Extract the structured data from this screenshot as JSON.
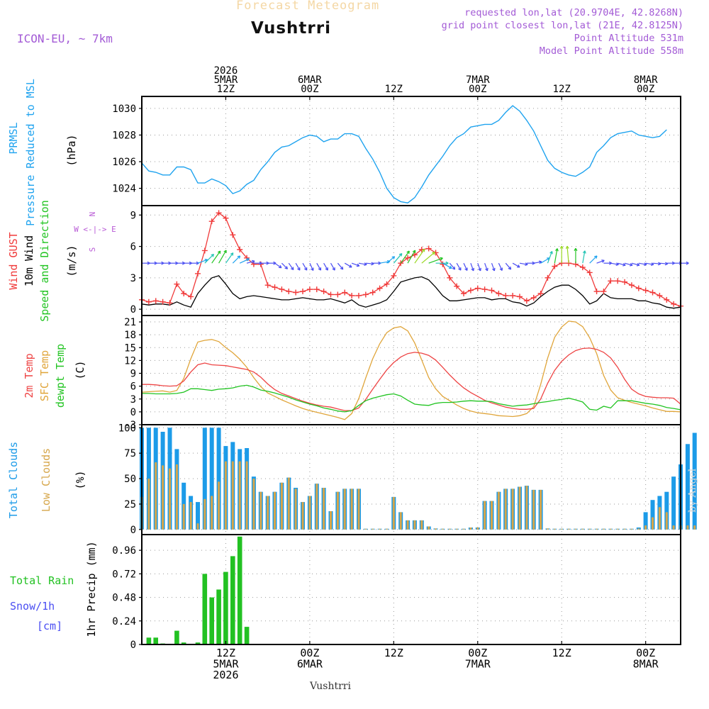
{
  "header": {
    "product_watermark": "Forecast Meteogram",
    "location": "Vushtrri",
    "model": "ICON-EU, ~ 7km",
    "requested": "requested lon,lat (20.9704E, 42.8268N)",
    "grid_point": "grid point closest lon,lat (21E, 42.8125N)",
    "point_altitude": "Point Altitude 531m",
    "model_altitude": "Model Point Altitude 558m",
    "credit": "by Angel",
    "footer_location": "Vushtrri"
  },
  "colors": {
    "pressure": "#1fa3ef",
    "gust": "#f03a3a",
    "wind": "#000000",
    "arrows": "#22c422",
    "temp2m": "#ee4444",
    "sfc": "#e0a53a",
    "dewpt": "#22c422",
    "total_clouds": "#1c9be8",
    "low_clouds": "#d6a64a",
    "rain": "#22c122",
    "snow": "#4a4ef2",
    "compass": "#b85ad6",
    "grid": "#9a9a9a"
  },
  "time_axis": {
    "top_labels": [
      {
        "hour": 12,
        "lines": [
          "2026",
          "5MAR",
          "12Z"
        ]
      },
      {
        "hour": 24,
        "lines": [
          "6MAR",
          "00Z"
        ]
      },
      {
        "hour": 36,
        "lines": [
          "12Z"
        ]
      },
      {
        "hour": 48,
        "lines": [
          "7MAR",
          "00Z"
        ]
      },
      {
        "hour": 60,
        "lines": [
          "12Z"
        ]
      },
      {
        "hour": 72,
        "lines": [
          "8MAR",
          "00Z"
        ]
      }
    ],
    "bottom_labels": [
      {
        "hour": 12,
        "lines": [
          "12Z",
          "5MAR",
          "2026"
        ]
      },
      {
        "hour": 24,
        "lines": [
          "00Z",
          "6MAR"
        ]
      },
      {
        "hour": 36,
        "lines": [
          "12Z"
        ]
      },
      {
        "hour": 48,
        "lines": [
          "00Z",
          "7MAR"
        ]
      },
      {
        "hour": 60,
        "lines": [
          "12Z"
        ]
      },
      {
        "hour": 72,
        "lines": [
          "00Z",
          "8MAR"
        ]
      }
    ]
  },
  "chart_data": [
    {
      "type": "line",
      "id": "pressure",
      "panel_title": [
        "PRMSL",
        "Pressure Reduced to MSL"
      ],
      "ylabel": "(hPa)",
      "x_range_hours": [
        0,
        77
      ],
      "ylim": [
        1022.7,
        1030.9
      ],
      "yticks": [
        1024,
        1026,
        1028,
        1030
      ],
      "series": [
        {
          "name": "PRMSL",
          "hour_start": 0,
          "values": [
            1025.9,
            1025.3,
            1025.2,
            1025.0,
            1025.0,
            1025.6,
            1025.6,
            1025.4,
            1024.4,
            1024.4,
            1024.7,
            1024.5,
            1024.2,
            1023.6,
            1023.8,
            1024.3,
            1024.6,
            1025.4,
            1026.0,
            1026.7,
            1027.1,
            1027.2,
            1027.5,
            1027.8,
            1028.0,
            1027.9,
            1027.5,
            1027.7,
            1027.7,
            1028.1,
            1028.1,
            1027.9,
            1027.0,
            1026.2,
            1025.2,
            1024.0,
            1023.3,
            1023.0,
            1022.9,
            1023.3,
            1024.1,
            1025.0,
            1025.7,
            1026.4,
            1027.2,
            1027.8,
            1028.1,
            1028.6,
            1028.7,
            1028.8,
            1028.8,
            1029.1,
            1029.7,
            1030.2,
            1029.8,
            1029.1,
            1028.3,
            1027.2,
            1026.1,
            1025.5,
            1025.2,
            1025.0,
            1024.9,
            1025.2,
            1025.6,
            1026.7,
            1027.2,
            1027.8,
            1028.1,
            1028.2,
            1028.3,
            1028.0,
            1027.9,
            1027.8,
            1027.9,
            1028.4
          ]
        }
      ]
    },
    {
      "type": "line",
      "id": "wind",
      "panel_title": [
        "Wind GUST",
        "10m Wind",
        "Speed and Direction"
      ],
      "ylabel": "(m/s)",
      "compass": [
        "N",
        "W <-|-> E",
        "S"
      ],
      "x_range_hours": [
        0,
        77
      ],
      "ylim": [
        -0.6,
        9.9
      ],
      "yticks": [
        0,
        3,
        6,
        9
      ],
      "series": [
        {
          "name": "Wind GUST",
          "hour_start": 0,
          "marker": "plus",
          "values": [
            0.9,
            0.7,
            0.8,
            0.7,
            0.6,
            2.4,
            1.5,
            1.2,
            3.4,
            5.6,
            8.4,
            9.2,
            8.7,
            7.1,
            5.7,
            4.9,
            4.3,
            4.3,
            2.3,
            2.1,
            1.9,
            1.7,
            1.6,
            1.7,
            1.9,
            1.9,
            1.7,
            1.4,
            1.4,
            1.6,
            1.3,
            1.3,
            1.4,
            1.6,
            2.0,
            2.4,
            3.2,
            4.4,
            4.9,
            5.2,
            5.7,
            5.8,
            5.4,
            4.3,
            3.0,
            2.2,
            1.5,
            1.8,
            2.0,
            1.9,
            1.8,
            1.5,
            1.3,
            1.3,
            1.2,
            0.8,
            1.1,
            1.5,
            3.0,
            4.1,
            4.4,
            4.4,
            4.3,
            4.0,
            3.5,
            1.7,
            1.7,
            2.7,
            2.7,
            2.6,
            2.3,
            2.0,
            1.8,
            1.6,
            1.3,
            0.9,
            0.5,
            0.3
          ]
        },
        {
          "name": "10m Wind",
          "hour_start": 0,
          "values": [
            0.5,
            0.4,
            0.5,
            0.5,
            0.4,
            0.7,
            0.4,
            0.2,
            1.5,
            2.3,
            3.0,
            3.2,
            2.4,
            1.5,
            1.0,
            1.2,
            1.3,
            1.2,
            1.1,
            1.0,
            0.9,
            0.9,
            1.0,
            1.1,
            1.0,
            0.9,
            0.9,
            1.0,
            0.8,
            0.6,
            0.9,
            0.4,
            0.2,
            0.4,
            0.6,
            0.9,
            1.7,
            2.6,
            2.8,
            3.0,
            3.1,
            2.8,
            2.1,
            1.3,
            0.8,
            0.8,
            0.9,
            1.0,
            1.1,
            1.1,
            0.9,
            1.0,
            1.0,
            0.7,
            0.6,
            0.3,
            0.6,
            1.2,
            1.7,
            2.1,
            2.3,
            2.3,
            1.9,
            1.3,
            0.5,
            0.8,
            1.5,
            1.1,
            1.0,
            1.0,
            1.0,
            0.8,
            0.8,
            0.6,
            0.5,
            0.2,
            0.1,
            0.2
          ]
        },
        {
          "name": "Speed and Direction",
          "hour_start": 0,
          "baseline": 4.4,
          "directions_deg": [
            270,
            270,
            270,
            270,
            270,
            270,
            270,
            270,
            250,
            225,
            215,
            210,
            215,
            225,
            245,
            255,
            270,
            270,
            270,
            305,
            315,
            325,
            330,
            330,
            335,
            330,
            330,
            330,
            320,
            300,
            290,
            280,
            275,
            270,
            260,
            230,
            220,
            215,
            210,
            215,
            230,
            250,
            270,
            300,
            320,
            330,
            335,
            340,
            340,
            340,
            340,
            335,
            320,
            300,
            280,
            270,
            260,
            240,
            200,
            190,
            180,
            175,
            180,
            190,
            225,
            250,
            270,
            280,
            285,
            285,
            285,
            280,
            280,
            275,
            275,
            270,
            270,
            270
          ],
          "strengths": [
            2,
            2,
            2,
            2,
            2,
            2,
            2,
            2,
            3,
            4,
            5,
            5,
            4,
            3,
            3,
            2,
            2,
            2,
            2,
            2,
            2,
            2,
            2,
            2,
            2,
            2,
            2,
            2,
            2,
            2,
            2,
            2,
            2,
            2,
            3,
            3,
            4,
            5,
            5,
            6,
            6,
            5,
            4,
            3,
            2,
            2,
            2,
            2,
            2,
            2,
            2,
            2,
            2,
            2,
            2,
            2,
            2,
            3,
            4,
            5,
            6,
            6,
            5,
            4,
            3,
            2,
            2,
            2,
            2,
            2,
            2,
            2,
            2,
            2,
            2,
            2,
            2,
            2
          ]
        }
      ]
    },
    {
      "type": "line",
      "id": "temperature",
      "panel_title": [
        "2m Temp",
        "SFC Temp",
        "dewpt Temp"
      ],
      "ylabel": "(C)",
      "x_range_hours": [
        0,
        77
      ],
      "ylim": [
        -3,
        22.5
      ],
      "yticks": [
        -3,
        0,
        3,
        6,
        9,
        12,
        15,
        18,
        21
      ],
      "series": [
        {
          "name": "2m Temp",
          "hour_start": 0,
          "values": [
            6.4,
            6.4,
            6.3,
            6.1,
            6.0,
            6.1,
            7.2,
            9.3,
            11.0,
            11.4,
            11.0,
            10.9,
            10.8,
            10.5,
            10.2,
            9.9,
            9.3,
            8.1,
            6.5,
            5.2,
            4.3,
            3.7,
            3.1,
            2.5,
            2.0,
            1.6,
            1.3,
            1.1,
            0.7,
            0.3,
            0.3,
            0.9,
            2.9,
            5.3,
            7.6,
            9.8,
            11.5,
            12.8,
            13.6,
            13.9,
            13.7,
            13.2,
            12.1,
            10.4,
            8.6,
            7.0,
            5.6,
            4.5,
            3.6,
            2.7,
            2.1,
            1.6,
            1.1,
            0.8,
            0.6,
            0.6,
            0.8,
            3.0,
            6.7,
            9.7,
            11.8,
            13.3,
            14.3,
            14.8,
            14.9,
            14.6,
            13.9,
            12.6,
            10.4,
            7.6,
            5.3,
            4.2,
            3.6,
            3.4,
            3.3,
            3.3,
            3.2,
            1.8
          ]
        },
        {
          "name": "SFC Temp",
          "hour_start": 0,
          "values": [
            4.6,
            4.7,
            4.8,
            4.9,
            4.6,
            5.0,
            7.8,
            12.4,
            16.3,
            16.7,
            16.9,
            16.4,
            15.0,
            13.8,
            12.3,
            10.4,
            8.0,
            5.9,
            4.4,
            3.6,
            2.8,
            2.1,
            1.4,
            0.8,
            0.3,
            -0.1,
            -0.5,
            -0.9,
            -1.3,
            -1.8,
            -0.4,
            3.1,
            7.9,
            12.4,
            15.9,
            18.5,
            19.6,
            19.9,
            18.9,
            16.1,
            12.1,
            8.0,
            5.4,
            3.6,
            2.6,
            1.6,
            0.8,
            0.2,
            -0.2,
            -0.4,
            -0.6,
            -0.9,
            -1.0,
            -1.1,
            -0.9,
            -0.4,
            1.2,
            6.4,
            12.6,
            17.4,
            19.8,
            21.2,
            21.0,
            19.9,
            17.3,
            13.6,
            8.5,
            5.1,
            3.3,
            2.7,
            2.2,
            1.8,
            1.4,
            0.9,
            0.5,
            0.1,
            0.1,
            0.0
          ]
        },
        {
          "name": "dewpt Temp",
          "hour_start": 0,
          "values": [
            4.3,
            4.3,
            4.2,
            4.2,
            4.2,
            4.3,
            4.6,
            5.4,
            5.4,
            5.2,
            5.0,
            5.3,
            5.4,
            5.6,
            6.0,
            6.2,
            5.8,
            5.1,
            4.8,
            4.4,
            3.9,
            3.4,
            2.8,
            2.3,
            1.8,
            1.4,
            0.9,
            0.6,
            0.2,
            0.0,
            0.3,
            1.5,
            2.6,
            3.2,
            3.6,
            4.0,
            4.2,
            3.7,
            2.7,
            1.8,
            1.6,
            1.5,
            2.0,
            2.2,
            2.2,
            2.3,
            2.5,
            2.6,
            2.5,
            2.5,
            2.4,
            1.9,
            1.6,
            1.3,
            1.5,
            1.6,
            1.9,
            2.2,
            2.4,
            2.7,
            2.9,
            3.2,
            2.8,
            2.3,
            0.6,
            0.4,
            1.3,
            0.9,
            2.6,
            2.6,
            2.6,
            2.3,
            2.0,
            1.8,
            1.5,
            1.0,
            0.8,
            0.5
          ]
        }
      ]
    },
    {
      "type": "bar",
      "id": "clouds",
      "panel_title": [
        "Total Clouds",
        "Low Clouds"
      ],
      "ylabel": "(%)",
      "x_range_hours": [
        0,
        77
      ],
      "ylim": [
        -5,
        103
      ],
      "yticks": [
        0,
        25,
        50,
        75,
        100
      ],
      "series": [
        {
          "name": "Total Clouds",
          "hour_start": 0,
          "values": [
            100,
            100,
            100,
            96,
            100,
            79,
            46,
            33,
            27,
            100,
            100,
            100,
            82,
            86,
            79,
            80,
            52,
            37,
            33,
            37,
            46,
            51,
            41,
            27,
            33,
            45,
            41,
            18,
            37,
            40,
            40,
            40,
            0,
            0,
            0,
            0,
            32,
            17,
            9,
            9,
            9,
            3,
            1,
            0,
            0,
            0,
            0,
            2,
            2,
            28,
            28,
            37,
            40,
            40,
            42,
            43,
            39,
            39,
            1,
            0,
            0,
            0,
            0,
            0,
            0,
            0,
            0,
            0,
            0,
            0,
            0,
            2,
            17,
            29,
            33,
            37,
            52,
            64,
            84,
            95
          ]
        },
        {
          "name": "Low Clouds",
          "hour_start": 0,
          "values": [
            32,
            50,
            66,
            63,
            60,
            64,
            25,
            27,
            6,
            30,
            33,
            47,
            67,
            67,
            67,
            67,
            50,
            37,
            33,
            37,
            46,
            51,
            40,
            27,
            33,
            45,
            41,
            18,
            37,
            40,
            40,
            40,
            0,
            0,
            0,
            0,
            32,
            17,
            9,
            9,
            9,
            3,
            1,
            0,
            0,
            0,
            0,
            2,
            2,
            28,
            28,
            37,
            40,
            40,
            42,
            43,
            39,
            39,
            1,
            0,
            0,
            0,
            0,
            0,
            0,
            0,
            0,
            0,
            0,
            0,
            0,
            1,
            4,
            12,
            22,
            17,
            4,
            4,
            4,
            4
          ]
        }
      ]
    },
    {
      "type": "bar",
      "id": "precip",
      "panel_title": [
        "Total Rain",
        "Snow/1h",
        "[cm]"
      ],
      "ylabel": "1hr Precip (mm)",
      "x_range_hours": [
        0,
        77
      ],
      "ylim": [
        0,
        1.12
      ],
      "yticks": [
        0,
        0.24,
        0.48,
        0.72,
        0.96
      ],
      "ytick_labels": [
        "0",
        "0.24",
        "0.48",
        "0.72",
        "0.96"
      ],
      "series": [
        {
          "name": "Total Rain",
          "hour_start": 0,
          "values": [
            0,
            0.07,
            0.07,
            0.01,
            0,
            0.14,
            0.02,
            0,
            0.02,
            0.72,
            0.48,
            0.56,
            0.74,
            0.9,
            1.1,
            0.18,
            0,
            0,
            0,
            0,
            0,
            0,
            0,
            0,
            0,
            0,
            0,
            0,
            0,
            0,
            0,
            0,
            0,
            0,
            0,
            0,
            0,
            0,
            0,
            0,
            0,
            0,
            0,
            0,
            0,
            0,
            0,
            0,
            0,
            0,
            0,
            0,
            0,
            0,
            0,
            0,
            0,
            0,
            0,
            0,
            0,
            0,
            0,
            0,
            0,
            0,
            0,
            0,
            0,
            0,
            0,
            0,
            0,
            0,
            0,
            0,
            0,
            0
          ]
        },
        {
          "name": "Snow/1h",
          "hour_start": 0,
          "values": []
        }
      ]
    }
  ]
}
